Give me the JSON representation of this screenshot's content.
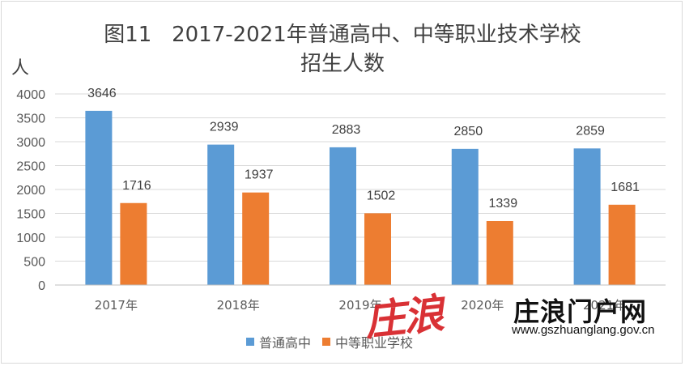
{
  "chart_data": {
    "type": "bar",
    "title_line1": "图11   2017-2021年普通高中、中等职业技术学校",
    "title_line2": "招生人数",
    "ylabel": "人",
    "ylim": [
      0,
      4000
    ],
    "yticks": [
      0,
      500,
      1000,
      1500,
      2000,
      2500,
      3000,
      3500,
      4000
    ],
    "categories": [
      "2017年",
      "2018年",
      "2019年",
      "2020年",
      "2021年"
    ],
    "series": [
      {
        "name": "普通高中",
        "color": "#5b9bd5",
        "values": [
          3646,
          2939,
          2883,
          2850,
          2859
        ]
      },
      {
        "name": "中等职业学校",
        "color": "#ed7d31",
        "values": [
          1716,
          1937,
          1502,
          1339,
          1681
        ]
      }
    ],
    "grid": true,
    "legend_position": "bottom"
  },
  "watermark": {
    "stylized_text": "庄浪",
    "site_name": "庄浪门户网",
    "url": "www.gszhuanglang.gov.cn",
    "color": "#d7262b"
  }
}
